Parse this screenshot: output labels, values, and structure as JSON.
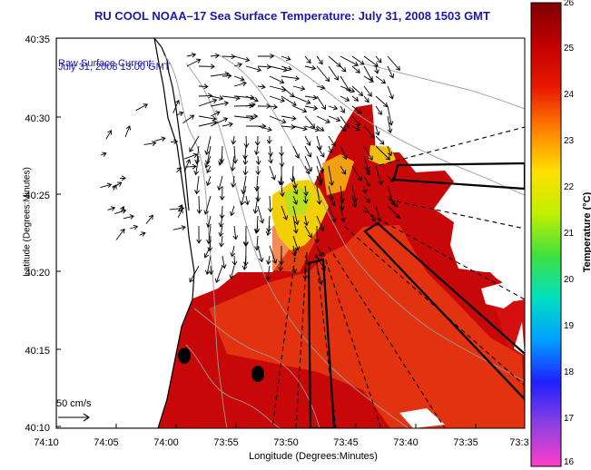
{
  "title": "RU COOL  NOAA–17  Sea Surface Temperature:  July 31, 2008 1503 GMT",
  "legend": {
    "line1": "Raw Surface Current:",
    "line2": "July 31, 2008 13:00 GMT",
    "scale_label": "50 cm/s"
  },
  "axes": {
    "xlabel": "Longitude (Degrees:Minutes)",
    "ylabel": "Latitude (Degrees:Minutes)",
    "x_ticks": [
      "74:10",
      "74:05",
      "74:00",
      "73:55",
      "73:50",
      "73:45",
      "73:40",
      "73:35",
      "73:3"
    ],
    "y_ticks": [
      "40:35",
      "40:30",
      "40:25",
      "40:20",
      "40:15",
      "40:10"
    ]
  },
  "colorbar": {
    "label": "Temperature (°C)",
    "min": 16,
    "max": 26,
    "ticks": [
      "26",
      "25",
      "24",
      "23",
      "22",
      "21",
      "20",
      "19",
      "18",
      "17",
      "16"
    ],
    "colors": [
      "#ff3ec8",
      "#8c40e0",
      "#2020ff",
      "#00a0ff",
      "#00e0c0",
      "#40e040",
      "#c0f000",
      "#ffe000",
      "#ff8000",
      "#e81800",
      "#c00000",
      "#800000"
    ]
  },
  "colors": {
    "title": "#1a1aa8",
    "land": "#ffffff",
    "sst_warm": "#c80808",
    "sst_mid": "#e83a10",
    "sst_cool": "#f2d008"
  }
}
